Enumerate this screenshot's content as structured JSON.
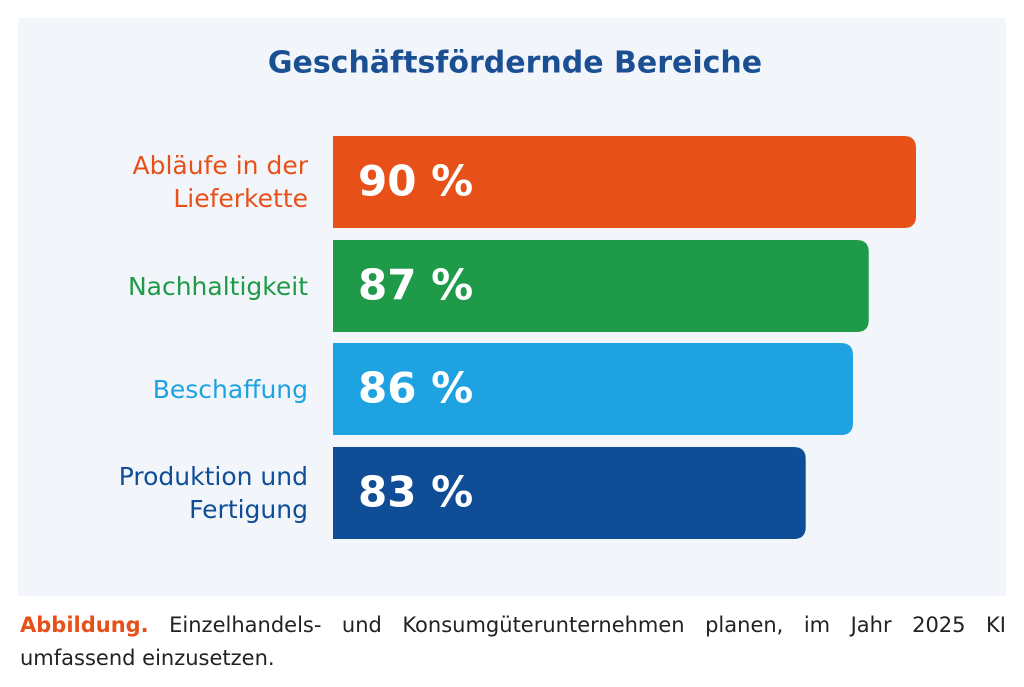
{
  "chart_data": {
    "type": "bar",
    "orientation": "horizontal",
    "title": "Geschäftsfördernde Bereiche",
    "categories": [
      "Abläufe in der Lieferkette",
      "Nachhaltigkeit",
      "Beschaffung",
      "Produktion und Fertigung"
    ],
    "values": [
      90,
      87,
      86,
      83
    ],
    "value_labels": [
      "90 %",
      "87 %",
      "86 %",
      "83 %"
    ],
    "colors": [
      "#e8501a",
      "#1e9a48",
      "#1ea2e2",
      "#0f4d96"
    ],
    "xlim": [
      53,
      90
    ]
  },
  "caption": {
    "label": "Abbildung.",
    "text": "Einzelhandels- und Konsumgüterunternehmen planen, im Jahr 2025 KI umfassend einzusetzen."
  }
}
